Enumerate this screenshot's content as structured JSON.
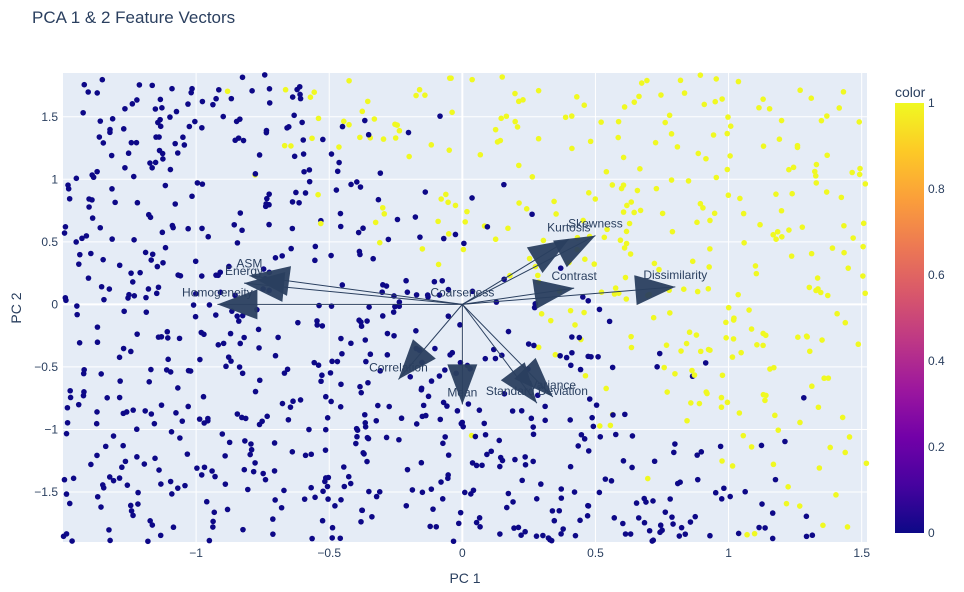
{
  "chart_data": {
    "type": "scatter",
    "title": "PCA 1 & 2 Feature Vectors",
    "xlabel": "PC 1",
    "ylabel": "PC 2",
    "xlim": [
      -1.5,
      1.52
    ],
    "ylim": [
      -1.9,
      1.85
    ],
    "x_ticks": [
      -1,
      -0.5,
      0,
      0.5,
      1,
      1.5
    ],
    "x_tick_labels": [
      "−1",
      "−0.5",
      "0",
      "0.5",
      "1",
      "1.5"
    ],
    "y_ticks": [
      -1.5,
      -1,
      -0.5,
      0,
      0.5,
      1,
      1.5
    ],
    "y_tick_labels": [
      "−1.5",
      "−1",
      "−0.5",
      "0",
      "0.5",
      "1",
      "1.5"
    ],
    "grid": true,
    "colorbar": {
      "title": "color",
      "range": [
        0,
        1
      ],
      "ticks": [
        0,
        0.2,
        0.4,
        0.6,
        0.8,
        1
      ],
      "tick_labels": [
        "0",
        "0.2",
        "0.4",
        "0.6",
        "0.8",
        "1"
      ],
      "colors": [
        "#0d0887",
        "#46039f",
        "#7201a8",
        "#9c179e",
        "#bd3786",
        "#d8576b",
        "#ed7953",
        "#fb9f3a",
        "#fdca26",
        "#f0f921"
      ]
    },
    "series": [
      {
        "color_value": 0,
        "color": "#0d0887",
        "point_count": 720
      },
      {
        "color_value": 1,
        "color": "#f0f921",
        "point_count": 330
      }
    ],
    "vectors": [
      {
        "name": "Skewness",
        "x": 0.5,
        "y": 0.55
      },
      {
        "name": "Kurtosis",
        "x": 0.4,
        "y": 0.52
      },
      {
        "name": "Contrast",
        "x": 0.42,
        "y": 0.13
      },
      {
        "name": "Dissimilarity",
        "x": 0.8,
        "y": 0.14
      },
      {
        "name": "Coarseness",
        "x": 0.0,
        "y": 0.0
      },
      {
        "name": "Homogeneity",
        "x": -0.92,
        "y": 0.0
      },
      {
        "name": "Energy",
        "x": -0.82,
        "y": 0.17
      },
      {
        "name": "ASM",
        "x": -0.8,
        "y": 0.23
      },
      {
        "name": "Correlation",
        "x": -0.24,
        "y": -0.6
      },
      {
        "name": "Mean",
        "x": 0.0,
        "y": -0.8
      },
      {
        "name": "Variance",
        "x": 0.34,
        "y": -0.74
      },
      {
        "name": "Standard Deviation",
        "x": 0.28,
        "y": -0.79
      }
    ]
  }
}
